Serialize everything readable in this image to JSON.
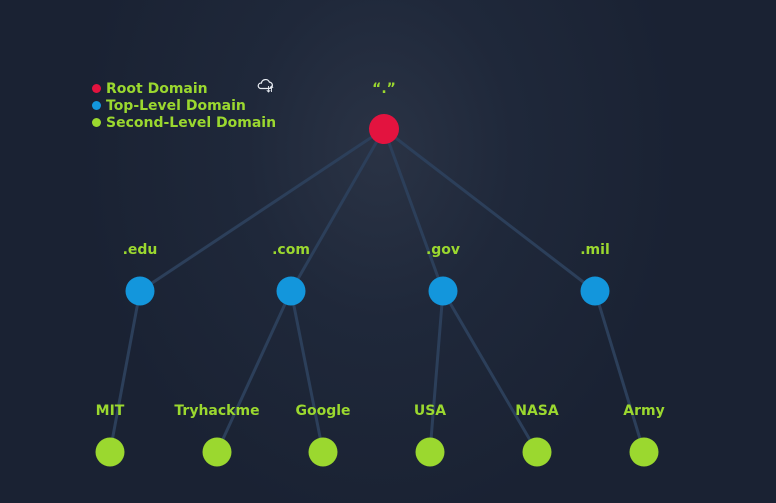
{
  "legend": {
    "items": [
      {
        "label": "Root Domain",
        "color": "#e3133f"
      },
      {
        "label": "Top-Level Domain",
        "color": "#1396dc"
      },
      {
        "label": "Second-Level Domain",
        "color": "#9bd82f"
      }
    ]
  },
  "icons": {
    "cloud": "cloud-sync-icon"
  },
  "colors": {
    "background": "#1b2334",
    "edge": "#2c3f5a",
    "label": "#9bd82f"
  },
  "tree": {
    "root": {
      "label": "“.”",
      "color": "#e3133f"
    },
    "tlds": [
      {
        "label": ".edu",
        "color": "#1396dc",
        "children": [
          {
            "label": "MIT",
            "color": "#9bd82f"
          }
        ]
      },
      {
        "label": ".com",
        "color": "#1396dc",
        "children": [
          {
            "label": "Tryhackme",
            "color": "#9bd82f"
          },
          {
            "label": "Google",
            "color": "#9bd82f"
          }
        ]
      },
      {
        "label": ".gov",
        "color": "#1396dc",
        "children": [
          {
            "label": "USA",
            "color": "#9bd82f"
          },
          {
            "label": "NASA",
            "color": "#9bd82f"
          }
        ]
      },
      {
        "label": ".mil",
        "color": "#1396dc",
        "children": [
          {
            "label": "Army",
            "color": "#9bd82f"
          }
        ]
      }
    ]
  }
}
